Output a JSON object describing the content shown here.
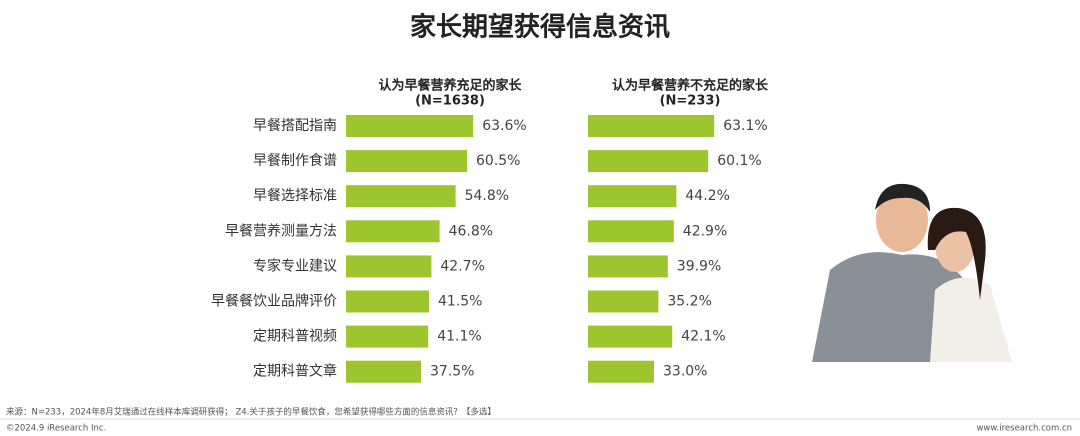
{
  "title": "家长期望获得信息资讯",
  "chart_data": [
    {
      "type": "bar",
      "title": "认为早餐营养充足的家长",
      "subtitle": "(N=1638)",
      "color": "#9dc52e",
      "categories": [
        "早餐搭配指南",
        "早餐制作食谱",
        "早餐选择标准",
        "早餐营养测量方法",
        "专家专业建议",
        "早餐餐饮业品牌评价",
        "定期科普视频",
        "定期科普文章"
      ],
      "values": [
        63.6,
        60.5,
        54.8,
        46.8,
        42.7,
        41.5,
        41.1,
        37.5
      ],
      "value_labels": [
        "63.6%",
        "60.5%",
        "54.8%",
        "46.8%",
        "42.7%",
        "41.5%",
        "41.1%",
        "37.5%"
      ]
    },
    {
      "type": "bar",
      "title": "认为早餐营养不充足的家长",
      "subtitle": "(N=233)",
      "color": "#9dc52e",
      "values": [
        63.1,
        60.1,
        44.2,
        42.9,
        39.9,
        35.2,
        42.1,
        33.0
      ],
      "value_labels": [
        "63.1%",
        "60.1%",
        "44.2%",
        "42.9%",
        "39.9%",
        "35.2%",
        "42.1%",
        "33.0%"
      ]
    }
  ],
  "footer": {
    "source": "来源：N=233，2024年8月艾瑞通过在线样本库调研获得；  Z4.关于孩子的早餐饮食，您希望获得哪些方面的信息资讯？【多选】",
    "copyright": "©2024.9 iResearch Inc.",
    "website": "www.iresearch.com.cn"
  }
}
